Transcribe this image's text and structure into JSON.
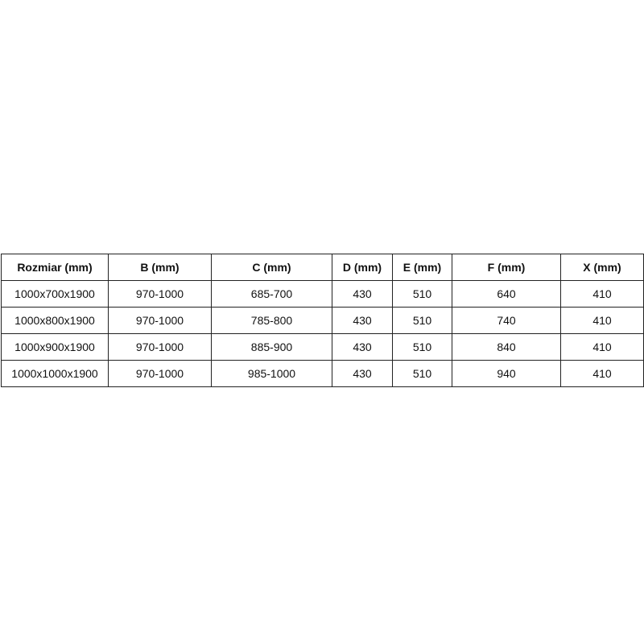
{
  "table": {
    "headers": [
      "Rozmiar (mm)",
      "B (mm)",
      "C (mm)",
      "D (mm)",
      "E (mm)",
      "F (mm)",
      "X (mm)"
    ],
    "rows": [
      [
        "1000x700x1900",
        "970-1000",
        "685-700",
        "430",
        "510",
        "640",
        "410"
      ],
      [
        "1000x800x1900",
        "970-1000",
        "785-800",
        "430",
        "510",
        "740",
        "410"
      ],
      [
        "1000x900x1900",
        "970-1000",
        "885-900",
        "430",
        "510",
        "840",
        "410"
      ],
      [
        "1000x1000x1900",
        "970-1000",
        "985-1000",
        "430",
        "510",
        "940",
        "410"
      ]
    ]
  }
}
